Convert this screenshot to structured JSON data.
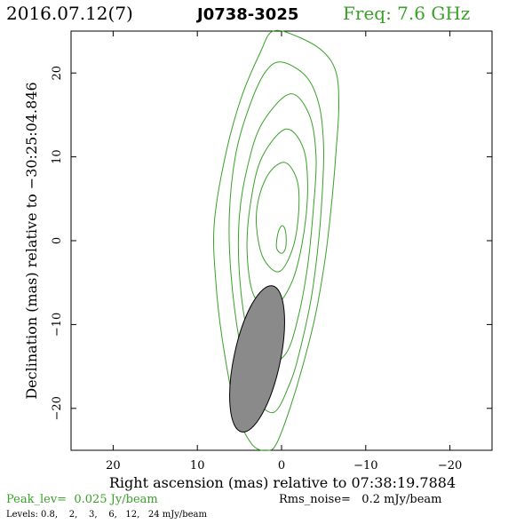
{
  "header": {
    "date": "2016.07.12(7)",
    "source": "J0738-3025",
    "frequency": "Freq: 7.6 GHz"
  },
  "footer": {
    "peak": "Peak_lev=  0.025 Jy/beam",
    "rms": "Rms_noise=   0.2 mJy/beam",
    "levels": "Levels: 0.8,    2,    3,    6,   12,   24 mJy/beam"
  },
  "colors": {
    "contour": "#3aa02a",
    "green_text": "#3aa02a",
    "beam_fill": "#8a8a8a",
    "axis": "#000000"
  },
  "chart_data": {
    "type": "contour",
    "xlabel": "Right ascension (mas) relative to 07:38:19.7884",
    "ylabel": "Declination (mas) relative to −30:25:04.846",
    "xlim": [
      25,
      -25
    ],
    "ylim": [
      -25,
      25
    ],
    "x_ticks": [
      20,
      10,
      0,
      -10,
      -20
    ],
    "x_tick_labels": [
      "20",
      "10",
      "0",
      "−10",
      "−20"
    ],
    "y_ticks": [
      -20,
      -10,
      0,
      10,
      20
    ],
    "y_tick_labels": [
      "−20",
      "−10",
      "0",
      "10",
      "20"
    ],
    "contour_levels_mJy": [
      0.8,
      2,
      3,
      6,
      12,
      24
    ],
    "contours": [
      {
        "level": 0.8,
        "points": [
          [
            1,
            25
          ],
          [
            -2,
            24.3
          ],
          [
            -5,
            22.5
          ],
          [
            -6.5,
            20
          ],
          [
            -6.8,
            16
          ],
          [
            -6.5,
            11
          ],
          [
            -6,
            5
          ],
          [
            -5.2,
            -2
          ],
          [
            -4,
            -9
          ],
          [
            -2.5,
            -15
          ],
          [
            -1,
            -20
          ],
          [
            0.5,
            -24
          ],
          [
            1.5,
            -25
          ],
          [
            3.5,
            -24.3
          ],
          [
            5.5,
            -20
          ],
          [
            7,
            -12
          ],
          [
            7.8,
            -5
          ],
          [
            8,
            2
          ],
          [
            6.7,
            10
          ],
          [
            4.8,
            17
          ],
          [
            2.5,
            22.5
          ],
          [
            1,
            25
          ]
        ]
      },
      {
        "level": 2,
        "points": [
          [
            0,
            21.3
          ],
          [
            -3,
            19.5
          ],
          [
            -4.5,
            16
          ],
          [
            -5,
            11
          ],
          [
            -4.8,
            5
          ],
          [
            -4.3,
            -1
          ],
          [
            -3.5,
            -7
          ],
          [
            -2.2,
            -13
          ],
          [
            -1,
            -17
          ],
          [
            1,
            -20.5
          ],
          [
            3.5,
            -18
          ],
          [
            5,
            -12
          ],
          [
            6,
            -4
          ],
          [
            6.2,
            3
          ],
          [
            5.5,
            10
          ],
          [
            4,
            15.5
          ],
          [
            2,
            20
          ],
          [
            0,
            21.3
          ]
        ]
      },
      {
        "level": 3,
        "points": [
          [
            -1,
            17.5
          ],
          [
            -3.3,
            15
          ],
          [
            -4.1,
            10
          ],
          [
            -3.8,
            4
          ],
          [
            -3.1,
            -3
          ],
          [
            -2,
            -9
          ],
          [
            -0.5,
            -13.5
          ],
          [
            2,
            -14.5
          ],
          [
            4,
            -11
          ],
          [
            5,
            -4
          ],
          [
            5,
            3
          ],
          [
            4,
            9
          ],
          [
            2.3,
            14
          ],
          [
            -1,
            17.5
          ]
        ]
      },
      {
        "level": 6,
        "points": [
          [
            -0.5,
            13.3
          ],
          [
            -2.6,
            11
          ],
          [
            -3.1,
            6
          ],
          [
            -2.5,
            0
          ],
          [
            -1.2,
            -5
          ],
          [
            1,
            -8
          ],
          [
            3.3,
            -6.5
          ],
          [
            4.1,
            -1
          ],
          [
            3.6,
            5
          ],
          [
            2.3,
            10
          ],
          [
            -0.5,
            13.3
          ]
        ]
      },
      {
        "level": 12,
        "points": [
          [
            -0.5,
            9.3
          ],
          [
            -1.9,
            7
          ],
          [
            -2,
            3
          ],
          [
            -1.3,
            -1
          ],
          [
            0.3,
            -3.7
          ],
          [
            2.2,
            -2
          ],
          [
            3,
            2
          ],
          [
            2.6,
            5.5
          ],
          [
            1.3,
            8.3
          ],
          [
            -0.5,
            9.3
          ]
        ]
      },
      {
        "level": 24,
        "points": [
          [
            -0.1,
            1.8
          ],
          [
            -0.5,
            1
          ],
          [
            -0.5,
            -0.8
          ],
          [
            0,
            -1.5
          ],
          [
            0.6,
            -0.8
          ],
          [
            0.4,
            1
          ],
          [
            -0.1,
            1.8
          ]
        ]
      }
    ],
    "beam": {
      "major_mas": 17.8,
      "minor_mas": 5.5,
      "pa_deg": 12,
      "x_mas": 2.9,
      "y_mas": -14.1
    }
  }
}
